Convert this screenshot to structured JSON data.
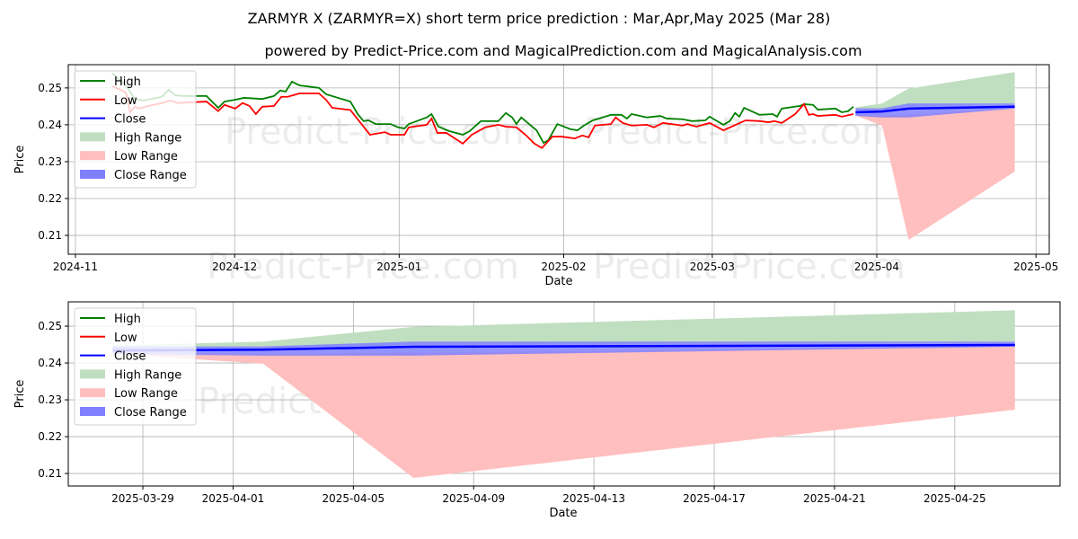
{
  "title": "ZARMYR X (ZARMYR=X) short term price prediction : Mar,Apr,May 2025 (Mar 28)",
  "subtitle": "powered by Predict-Price.com and MagicalPrediction.com and MagicalAnalysis.com",
  "watermark": "Predict-Price.com",
  "colors": {
    "high": "#008000",
    "low": "#ff0000",
    "close": "#0000ff",
    "high_range": "#c0dfc0",
    "low_range": "#ffbfbf",
    "close_range": "#8080ff"
  },
  "legend": [
    "High",
    "Low",
    "Close",
    "High Range",
    "Low Range",
    "Close Range"
  ],
  "chart_data": [
    {
      "type": "line",
      "xlabel": "Date",
      "ylabel": "Price",
      "x_unit": "days since 2024-11-01",
      "ylim": [
        0.2049,
        0.2563
      ],
      "xlim": [
        -1.35,
        183.5
      ],
      "yticks": [
        0.21,
        0.22,
        0.23,
        0.24,
        0.25
      ],
      "ytick_labels": [
        "0.21",
        "0.22",
        "0.23",
        "0.24",
        "0.25"
      ],
      "xticks": [
        0,
        30,
        61,
        92,
        120,
        151,
        181
      ],
      "xtick_labels": [
        "2024-11",
        "2024-12",
        "2025-01",
        "2025-02",
        "2025-03",
        "2025-04",
        "2025-05"
      ],
      "grid": true,
      "legend_position": "upper-left",
      "series": [
        {
          "name": "High",
          "x": [
            6.9,
            9.5,
            11.2,
            12.9,
            16.3,
            17.6,
            18.8,
            20.5,
            24.7,
            26.9,
            28.1,
            30.1,
            31.8,
            35.2,
            37.4,
            38.6,
            39.6,
            40.8,
            42.2,
            45.9,
            47.2,
            51.8,
            53.2,
            54.3,
            55.2,
            56.6,
            59.4,
            60.8,
            62.0,
            62.8,
            66.2,
            67.1,
            68.4,
            70.4,
            73.0,
            74.3,
            76.4,
            79.7,
            81.1,
            82.3,
            83.1,
            84.0,
            86.9,
            88.2,
            89.1,
            90.8,
            93.3,
            94.6,
            95.8,
            97.5,
            100.9,
            102.9,
            103.9,
            104.8,
            107.7,
            110.2,
            111.4,
            114.4,
            116.2,
            118.7,
            119.5,
            122.1,
            123.3,
            124.3,
            125.1,
            126.0,
            128.9,
            131.4,
            132.2,
            133.1,
            136.5,
            137.3,
            139.0,
            139.9,
            143.2,
            144.4,
            145.6,
            146.6
          ],
          "values": [
            0.254,
            0.2507,
            0.247,
            0.2466,
            0.2476,
            0.2495,
            0.248,
            0.2478,
            0.2478,
            0.2446,
            0.2463,
            0.2468,
            0.2473,
            0.247,
            0.2478,
            0.2493,
            0.249,
            0.2517,
            0.2507,
            0.25,
            0.2483,
            0.2463,
            0.2429,
            0.241,
            0.2412,
            0.2402,
            0.2402,
            0.2393,
            0.239,
            0.2402,
            0.242,
            0.2429,
            0.2395,
            0.2383,
            0.2373,
            0.2383,
            0.241,
            0.241,
            0.2432,
            0.242,
            0.2402,
            0.242,
            0.2385,
            0.2351,
            0.2358,
            0.2402,
            0.2388,
            0.2385,
            0.2398,
            0.2412,
            0.2427,
            0.2427,
            0.2417,
            0.2429,
            0.242,
            0.2424,
            0.2417,
            0.2415,
            0.241,
            0.2412,
            0.2422,
            0.24,
            0.241,
            0.2432,
            0.2422,
            0.2446,
            0.2427,
            0.2429,
            0.2422,
            0.2444,
            0.2451,
            0.2456,
            0.2454,
            0.2441,
            0.2444,
            0.2434,
            0.2437,
            0.2449
          ]
        },
        {
          "name": "Low",
          "x": [
            6.9,
            9.5,
            10.3,
            11.2,
            12.0,
            13.7,
            16.3,
            18.0,
            19.2,
            24.7,
            26.9,
            28.1,
            30.1,
            31.5,
            32.8,
            34.0,
            35.2,
            37.4,
            38.8,
            40.0,
            42.2,
            45.9,
            47.2,
            48.4,
            51.8,
            53.2,
            55.5,
            58.3,
            59.4,
            62.0,
            62.8,
            66.2,
            67.1,
            68.2,
            69.9,
            73.0,
            74.7,
            77.2,
            79.7,
            81.1,
            83.1,
            84.8,
            86.5,
            87.9,
            89.9,
            91.6,
            94.1,
            95.5,
            96.7,
            97.9,
            100.9,
            101.8,
            103.1,
            104.8,
            107.7,
            109.0,
            110.7,
            114.4,
            115.3,
            117.0,
            119.5,
            122.1,
            125.5,
            126.3,
            128.9,
            130.6,
            131.7,
            133.1,
            135.6,
            137.3,
            138.2,
            139.0,
            139.9,
            143.2,
            144.4,
            146.6
          ],
          "values": [
            0.2505,
            0.2488,
            0.2434,
            0.2449,
            0.2444,
            0.2451,
            0.2459,
            0.2466,
            0.2459,
            0.2463,
            0.2437,
            0.2454,
            0.2444,
            0.2459,
            0.2451,
            0.2429,
            0.2449,
            0.2451,
            0.2476,
            0.2476,
            0.2485,
            0.2485,
            0.2468,
            0.2446,
            0.244,
            0.2415,
            0.2373,
            0.238,
            0.2373,
            0.2373,
            0.2393,
            0.24,
            0.2417,
            0.2378,
            0.2378,
            0.2349,
            0.2373,
            0.2393,
            0.24,
            0.2395,
            0.2393,
            0.2373,
            0.2349,
            0.2337,
            0.2368,
            0.2368,
            0.2363,
            0.2371,
            0.2366,
            0.2398,
            0.2402,
            0.242,
            0.2405,
            0.2398,
            0.24,
            0.2393,
            0.2405,
            0.2398,
            0.2402,
            0.2395,
            0.2405,
            0.2385,
            0.2407,
            0.2412,
            0.241,
            0.2407,
            0.241,
            0.2405,
            0.2429,
            0.2456,
            0.2427,
            0.2429,
            0.2424,
            0.2427,
            0.2422,
            0.2429
          ]
        },
        {
          "name": "Close",
          "x": [
            147,
            152,
            157,
            177
          ],
          "values": [
            0.2434,
            0.2436,
            0.2444,
            0.2449
          ]
        }
      ],
      "ranges": [
        {
          "name": "High Range",
          "x": [
            147,
            152,
            157,
            177
          ],
          "lower": [
            0.244,
            0.244,
            0.245,
            0.2458
          ],
          "upper": [
            0.2447,
            0.2458,
            0.2498,
            0.2543
          ]
        },
        {
          "name": "Low Range",
          "x": [
            147,
            152,
            157,
            177
          ],
          "lower": [
            0.2425,
            0.2398,
            0.2088,
            0.2273
          ],
          "upper": [
            0.243,
            0.2425,
            0.2428,
            0.2444
          ]
        },
        {
          "name": "Close Range",
          "x": [
            147,
            152,
            157,
            177
          ],
          "lower": [
            0.2424,
            0.242,
            0.242,
            0.2444
          ],
          "upper": [
            0.2445,
            0.2445,
            0.2458,
            0.2458
          ]
        }
      ]
    },
    {
      "type": "line",
      "xlabel": "Date",
      "ylabel": "Price",
      "x_unit": "days since 2025-03-28",
      "ylim": [
        0.2066,
        0.2566
      ],
      "xlim": [
        -1.48,
        31.5
      ],
      "yticks": [
        0.21,
        0.22,
        0.23,
        0.24,
        0.25
      ],
      "ytick_labels": [
        "0.21",
        "0.22",
        "0.23",
        "0.24",
        "0.25"
      ],
      "xticks": [
        1,
        4,
        8,
        12,
        16,
        20,
        24,
        28
      ],
      "xtick_labels": [
        "2025-03-29",
        "2025-04-01",
        "2025-04-05",
        "2025-04-09",
        "2025-04-13",
        "2025-04-17",
        "2025-04-21",
        "2025-04-25"
      ],
      "grid": true,
      "legend_position": "upper-left",
      "series": [
        {
          "name": "Close",
          "x": [
            0,
            5,
            10,
            30
          ],
          "values": [
            0.2434,
            0.2436,
            0.2444,
            0.2449
          ]
        }
      ],
      "ranges": [
        {
          "name": "High Range",
          "x": [
            0,
            5,
            10,
            30
          ],
          "lower": [
            0.244,
            0.244,
            0.245,
            0.2458
          ],
          "upper": [
            0.2447,
            0.2458,
            0.2498,
            0.2543
          ]
        },
        {
          "name": "Low Range",
          "x": [
            0,
            5,
            10,
            30
          ],
          "lower": [
            0.2425,
            0.2398,
            0.2088,
            0.2273
          ],
          "upper": [
            0.243,
            0.2425,
            0.2428,
            0.2444
          ]
        },
        {
          "name": "Close Range",
          "x": [
            0,
            5,
            10,
            30
          ],
          "lower": [
            0.2424,
            0.242,
            0.242,
            0.2444
          ],
          "upper": [
            0.2445,
            0.2445,
            0.2458,
            0.2458
          ]
        }
      ]
    }
  ]
}
